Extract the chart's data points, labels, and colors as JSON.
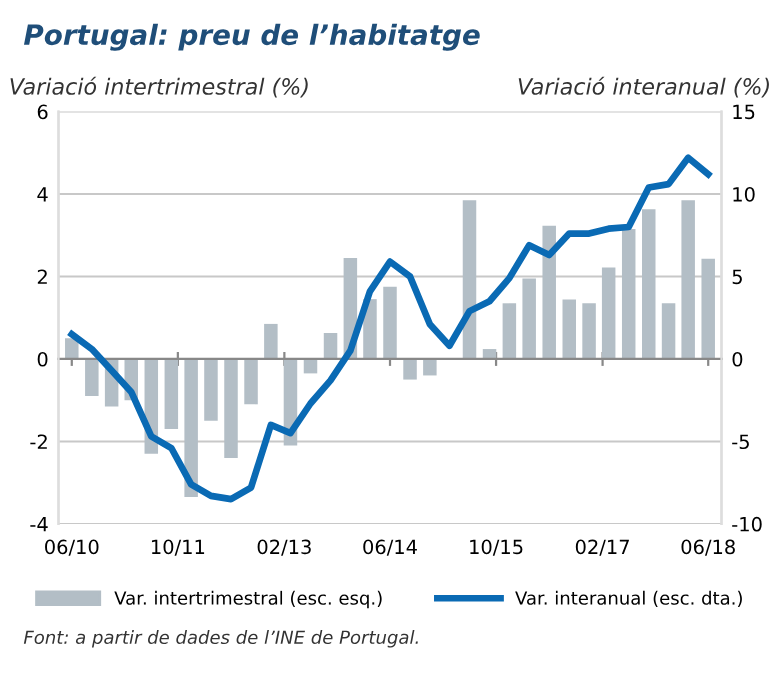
{
  "chart_data": {
    "type": "bar",
    "title": "Portugal: preu de l’habitatge",
    "ylabel": "Variació intertrimestral (%)",
    "y2label": "Variació interanual (%)",
    "x": [
      "2010-06",
      "2010-09",
      "2010-12",
      "2011-03",
      "2011-06",
      "2011-09",
      "2011-12",
      "2012-03",
      "2012-06",
      "2012-09",
      "2012-12",
      "2013-03",
      "2013-06",
      "2013-09",
      "2013-12",
      "2014-03",
      "2014-06",
      "2014-09",
      "2014-12",
      "2015-03",
      "2015-06",
      "2015-09",
      "2015-12",
      "2016-03",
      "2016-06",
      "2016-09",
      "2016-12",
      "2017-03",
      "2017-06",
      "2017-09",
      "2017-12",
      "2018-03",
      "2018-06"
    ],
    "series": [
      {
        "name": "Var. intertrimestral (esc. esq.)",
        "axis": "y",
        "color": "#b3bec6",
        "values": [
          0.5,
          -0.9,
          -1.15,
          -1.0,
          -2.3,
          -1.7,
          -3.35,
          -1.5,
          -2.4,
          -1.1,
          0.85,
          -2.1,
          -0.35,
          0.63,
          2.45,
          1.45,
          1.75,
          -0.5,
          -0.4,
          null,
          3.85,
          0.24,
          1.35,
          1.95,
          3.23,
          1.44,
          1.35,
          2.22,
          3.15,
          3.63,
          1.35,
          3.85,
          2.43
        ]
      },
      {
        "name": "Var. interanual (esc. dta.)",
        "type": "line",
        "axis": "y2",
        "color": "#0a6ab4",
        "values": [
          1.5,
          0.6,
          -0.7,
          -2.0,
          -4.7,
          -5.4,
          -7.6,
          -8.3,
          -8.5,
          -7.8,
          -4.0,
          -4.5,
          -2.7,
          -1.3,
          0.5,
          4.1,
          5.9,
          5.0,
          2.1,
          0.8,
          2.9,
          3.5,
          4.9,
          6.9,
          6.3,
          7.6,
          7.6,
          7.9,
          8.0,
          10.4,
          10.6,
          12.2,
          11.2
        ]
      }
    ],
    "xlim": [
      "2010-04",
      "2018-08"
    ],
    "xticks": [
      {
        "value": "2010-06",
        "label": "06/10"
      },
      {
        "value": "2011-10",
        "label": "10/11"
      },
      {
        "value": "2013-02",
        "label": "02/13"
      },
      {
        "value": "2014-06",
        "label": "06/14"
      },
      {
        "value": "2015-10",
        "label": "10/15"
      },
      {
        "value": "2017-02",
        "label": "02/17"
      },
      {
        "value": "2018-06",
        "label": "06/18"
      }
    ],
    "ylim": [
      -4,
      6
    ],
    "yticks": [
      -4,
      -2,
      0,
      2,
      4,
      6
    ],
    "y2lim": [
      -10,
      15
    ],
    "y2ticks": [
      -10,
      -5,
      0,
      5,
      10,
      15
    ],
    "grid": "y",
    "legend": "bottom",
    "marker": "none",
    "line_style": "solid",
    "annotations": [
      "Font: a partir de dades de l’INE de Portugal."
    ]
  }
}
